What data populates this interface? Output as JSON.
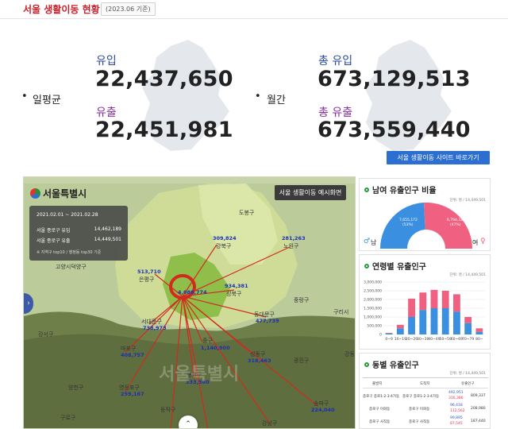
{
  "header": {
    "title": "서울 생활이동 현황",
    "date": "(2023.06 기준)"
  },
  "daily": {
    "label": "일평균",
    "inflow_label": "유입",
    "inflow_value": "22,437,650",
    "outflow_label": "유출",
    "outflow_value": "22,451,981"
  },
  "monthly": {
    "label": "월간",
    "inflow_label": "총 유입",
    "inflow_value": "673,129,513",
    "outflow_label": "총 유출",
    "outflow_value": "673,559,440"
  },
  "site_button": "서울 생활이동 사이트 바로가기",
  "map": {
    "logo": "서울특별시",
    "preview_button": "서울 생활이동 예시화면",
    "info": {
      "date": "2021.02.01 ~ 2021.02.28",
      "row1_label": "서울 종로구 유입",
      "row1_value": "14,462,189",
      "row2_label": "서울 종로구 유출",
      "row2_value": "14,449,501",
      "note": "※ 지역구 top10 / 행정동 top30 기준"
    },
    "regions": {
      "dobong": "도봉구",
      "gangbuk": "강북구",
      "nowon": "노원구",
      "goyang": "고양시덕양구",
      "eunpyeong": "은평구",
      "seongbuk": "성북구",
      "jungnang": "중랑구",
      "dongdaemun": "동대문구",
      "seodaemun": "서대문구",
      "guri": "구리시",
      "gangseo": "강서구",
      "mapo": "마포구",
      "junggu": "중구",
      "seongdong": "성동구",
      "gwangjin": "광진구",
      "yangcheon": "양천구",
      "yeongdeungpo": "영등포구",
      "yongsan": "용산구",
      "gangdong": "강동",
      "guro": "구로구",
      "dongjak": "동작구",
      "songpa": "송파구",
      "gangnam": "강남구"
    },
    "flows": {
      "gangbuk": "309,824",
      "nowon": "281,263",
      "eunpyeong": "513,710",
      "seongbuk": "934,381",
      "center": "4,088,774",
      "dongdaemun": "477,739",
      "seodaemun": "738,973",
      "mapo": "408,757",
      "junggu": "1,140,900",
      "seongdong": "318,463",
      "yeongdeungpo": "259,167",
      "yongsan": "333,560",
      "songpa": "224,040"
    },
    "watermark": "서울특별시"
  },
  "gender_card": {
    "title": "남여 유출인구 비율",
    "unit": "단위: 명 / 14,449,501",
    "male_label": "남",
    "female_label": "여",
    "male_value": "7,655,172",
    "male_pct": "(53%)",
    "female_value": "6,794,329",
    "female_pct": "(47%)",
    "male_color": "#3a8fe0",
    "female_color": "#f06080"
  },
  "age_card": {
    "title": "연령별 유출인구",
    "unit": "단위: 명 / 14,449,501",
    "y_ticks": [
      "3,000,000",
      "2,500,000",
      "2,000,000",
      "1,500,000",
      "1,000,000",
      "500,000",
      "0"
    ],
    "chart_data": {
      "type": "bar",
      "categories": [
        "0~9",
        "10~19",
        "20~29",
        "30~39",
        "40~49",
        "50~59",
        "60~69",
        "70~79",
        "80~"
      ],
      "male": [
        60000,
        350000,
        1000000,
        1400000,
        1500000,
        1500000,
        1300000,
        650000,
        150000
      ],
      "female": [
        30000,
        200000,
        1050000,
        1000000,
        1050000,
        1000000,
        1000000,
        350000,
        200000
      ],
      "ylim": [
        0,
        3000000
      ]
    }
  },
  "dong_card": {
    "title": "동별 유출인구",
    "unit": "단위: 명 / 14,449,501",
    "headers": [
      "출발지",
      "도착지",
      "유출인구"
    ],
    "rows": [
      {
        "from": "종로구 종로1·2·3·4가동",
        "to": "종로구 종로1·2·3·4가동",
        "male": "492,951",
        "female": "316,386",
        "total": "809,337"
      },
      {
        "from": "종로구 이화동",
        "to": "종로구 이화동",
        "male": "96,418",
        "female": "112,562",
        "total": "208,980"
      },
      {
        "from": "종로구 사직동",
        "to": "종로구 사직동",
        "male": "99,895",
        "female": "87,545",
        "total": "187,440"
      }
    ]
  }
}
